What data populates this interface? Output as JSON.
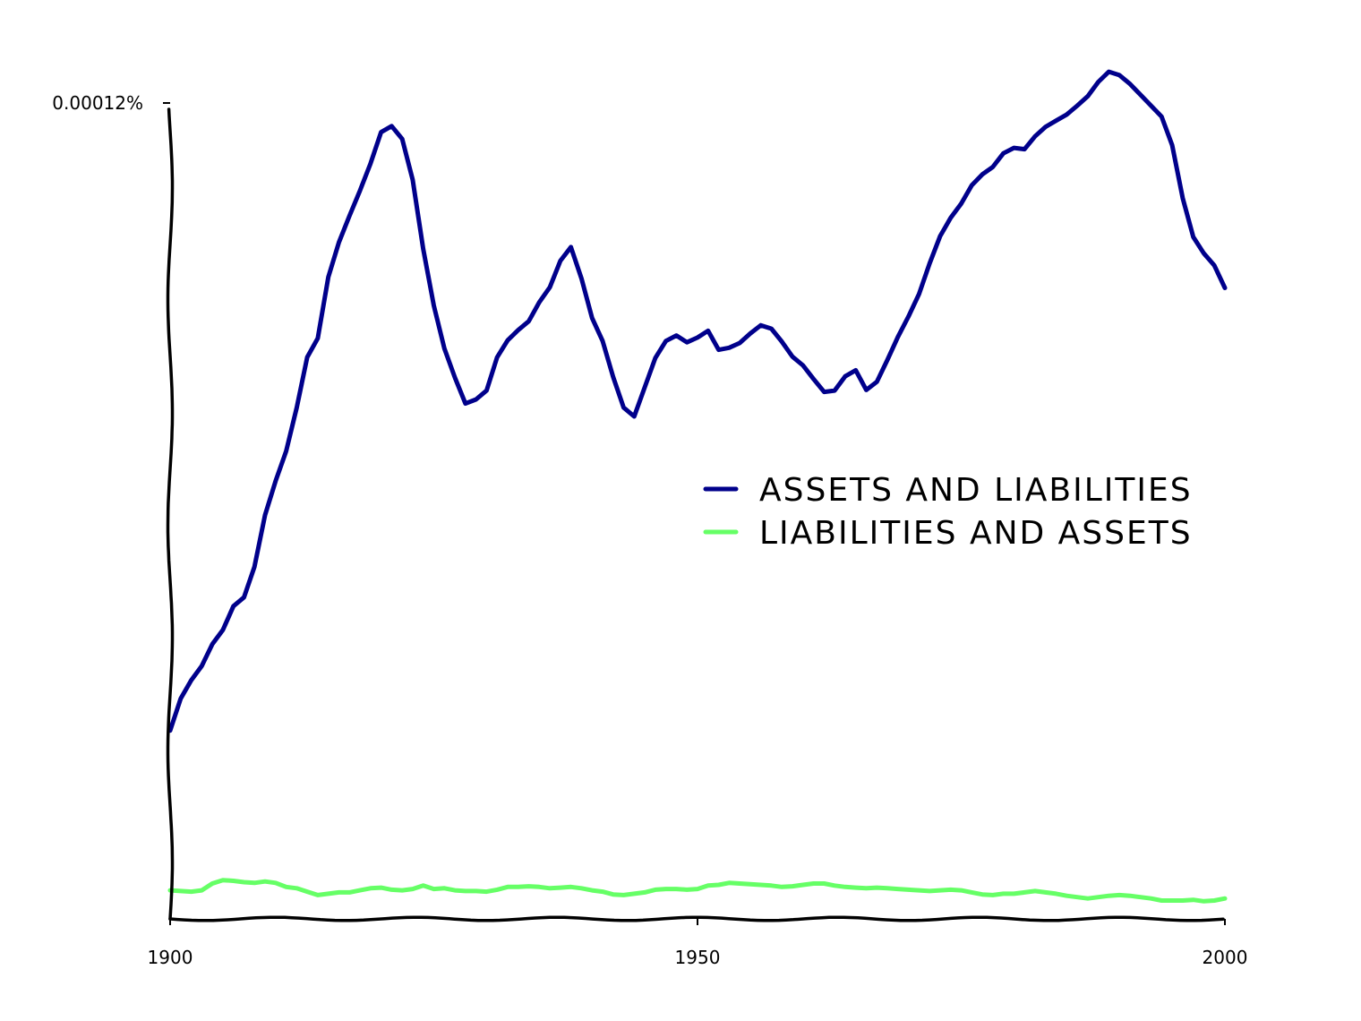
{
  "chart_data": {
    "type": "line",
    "title": "",
    "xlabel": "",
    "ylabel": "",
    "xlim": [
      1900,
      2000
    ],
    "ylim": [
      0,
      0.00012
    ],
    "x_ticks": [
      {
        "value": 1900,
        "label": "1900"
      },
      {
        "value": 1950,
        "label": "1950"
      },
      {
        "value": 2000,
        "label": "2000"
      }
    ],
    "y_ticks": [
      {
        "value": 0.00012,
        "label": "0.00012%"
      }
    ],
    "grid": false,
    "legend_position": "center-right",
    "series": [
      {
        "name": "ASSETS AND LIABILITIES",
        "color": "#00008b",
        "x": [
          1900,
          1901,
          1902,
          1903,
          1904,
          1905,
          1906,
          1907,
          1908,
          1909,
          1910,
          1911,
          1912,
          1913,
          1914,
          1915,
          1916,
          1917,
          1918,
          1919,
          1920,
          1921,
          1922,
          1923,
          1924,
          1925,
          1926,
          1927,
          1928,
          1929,
          1930,
          1931,
          1932,
          1933,
          1934,
          1935,
          1936,
          1937,
          1938,
          1939,
          1940,
          1941,
          1942,
          1943,
          1944,
          1945,
          1946,
          1947,
          1948,
          1949,
          1950,
          1951,
          1952,
          1953,
          1954,
          1955,
          1956,
          1957,
          1958,
          1959,
          1960,
          1961,
          1962,
          1963,
          1964,
          1965,
          1966,
          1967,
          1968,
          1969,
          1970,
          1971,
          1972,
          1973,
          1974,
          1975,
          1976,
          1977,
          1978,
          1979,
          1980,
          1981,
          1982,
          1983,
          1984,
          1985,
          1986,
          1987,
          1988,
          1989,
          1990,
          1991,
          1992,
          1993,
          1994,
          1995,
          1996,
          1997,
          1998,
          1999,
          2000
        ],
        "values": [
          2.77e-05,
          3.24e-05,
          3.51e-05,
          3.72e-05,
          4.04e-05,
          4.25e-05,
          4.6e-05,
          4.73e-05,
          5.18e-05,
          5.94e-05,
          6.44e-05,
          6.88e-05,
          7.52e-05,
          8.26e-05,
          8.54e-05,
          9.44e-05,
          9.95e-05,
          0.0001034,
          0.0001071,
          0.0001111,
          0.0001157,
          0.0001166,
          0.0001147,
          0.0001087,
          9.85e-05,
          9.02e-05,
          8.39e-05,
          7.96e-05,
          7.58e-05,
          7.64e-05,
          7.77e-05,
          8.26e-05,
          8.51e-05,
          8.66e-05,
          8.79e-05,
          9.07e-05,
          9.29e-05,
          9.68e-05,
          9.88e-05,
          9.42e-05,
          8.84e-05,
          8.5e-05,
          7.97e-05,
          7.52e-05,
          7.39e-05,
          7.82e-05,
          8.25e-05,
          8.5e-05,
          8.58e-05,
          8.48e-05,
          8.55e-05,
          8.65e-05,
          8.37e-05,
          8.4e-05,
          8.47e-05,
          8.61e-05,
          8.73e-05,
          8.68e-05,
          8.49e-05,
          8.27e-05,
          8.14e-05,
          7.94e-05,
          7.75e-05,
          7.77e-05,
          7.98e-05,
          8.07e-05,
          7.78e-05,
          7.9e-05,
          8.22e-05,
          8.56e-05,
          8.86e-05,
          9.19e-05,
          9.64e-05,
          0.0001004,
          0.0001031,
          0.0001052,
          0.0001079,
          0.0001095,
          0.0001106,
          0.0001126,
          0.0001134,
          0.0001132,
          0.0001151,
          0.0001165,
          0.0001174,
          0.0001183,
          0.0001196,
          0.000121,
          0.0001231,
          0.0001246,
          0.0001241,
          0.0001228,
          0.0001212,
          0.0001196,
          0.000118,
          0.0001138,
          0.000106,
          0.0001003,
          9.79e-05,
          9.61e-05,
          9.28e-05
        ],
        "values_note": ""
      },
      {
        "name": "LIABILITIES AND ASSETS",
        "color": "#66ff66",
        "x": [
          1900,
          1901,
          1902,
          1903,
          1904,
          1905,
          1906,
          1907,
          1908,
          1909,
          1910,
          1911,
          1912,
          1913,
          1914,
          1915,
          1916,
          1917,
          1918,
          1919,
          1920,
          1921,
          1922,
          1923,
          1924,
          1925,
          1926,
          1927,
          1928,
          1929,
          1930,
          1931,
          1932,
          1933,
          1934,
          1935,
          1936,
          1937,
          1938,
          1939,
          1940,
          1941,
          1942,
          1943,
          1944,
          1945,
          1946,
          1947,
          1948,
          1949,
          1950,
          1951,
          1952,
          1953,
          1954,
          1955,
          1956,
          1957,
          1958,
          1959,
          1960,
          1961,
          1962,
          1963,
          1964,
          1965,
          1966,
          1967,
          1968,
          1969,
          1970,
          1971,
          1972,
          1973,
          1974,
          1975,
          1976,
          1977,
          1978,
          1979,
          1980,
          1981,
          1982,
          1983,
          1984,
          1985,
          1986,
          1987,
          1988,
          1989,
          1990,
          1991,
          1992,
          1993,
          1994,
          1995,
          1996,
          1997,
          1998,
          1999,
          2000
        ],
        "values": [
          4.2e-06,
          4.1e-06,
          4e-06,
          4.2e-06,
          5.2e-06,
          5.7e-06,
          5.6e-06,
          5.4e-06,
          5.3e-06,
          5.5e-06,
          5.3e-06,
          4.7e-06,
          4.5e-06,
          4e-06,
          3.5e-06,
          3.7e-06,
          3.9e-06,
          3.9e-06,
          4.2e-06,
          4.5e-06,
          4.6e-06,
          4.3e-06,
          4.2e-06,
          4.4e-06,
          4.9e-06,
          4.4e-06,
          4.5e-06,
          4.2e-06,
          4.1e-06,
          4.1e-06,
          4e-06,
          4.3e-06,
          4.7e-06,
          4.7e-06,
          4.8e-06,
          4.7e-06,
          4.5e-06,
          4.6e-06,
          4.7e-06,
          4.5e-06,
          4.2e-06,
          4e-06,
          3.6e-06,
          3.5e-06,
          3.7e-06,
          3.9e-06,
          4.3e-06,
          4.4e-06,
          4.4e-06,
          4.3e-06,
          4.4e-06,
          4.9e-06,
          5e-06,
          5.3e-06,
          5.2e-06,
          5.1e-06,
          5e-06,
          4.9e-06,
          4.7e-06,
          4.8e-06,
          5e-06,
          5.2e-06,
          5.2e-06,
          4.9e-06,
          4.7e-06,
          4.6e-06,
          4.5e-06,
          4.6e-06,
          4.5e-06,
          4.4e-06,
          4.3e-06,
          4.2e-06,
          4.1e-06,
          4.2e-06,
          4.3e-06,
          4.2e-06,
          3.9e-06,
          3.6e-06,
          3.5e-06,
          3.7e-06,
          3.7e-06,
          3.9e-06,
          4.1e-06,
          3.9e-06,
          3.7e-06,
          3.4e-06,
          3.2e-06,
          3e-06,
          3.2e-06,
          3.4e-06,
          3.5e-06,
          3.4e-06,
          3.2e-06,
          3e-06,
          2.7e-06,
          2.7e-06,
          2.7e-06,
          2.8e-06,
          2.6e-06,
          2.7e-06,
          3e-06
        ],
        "values_note": ""
      }
    ]
  }
}
